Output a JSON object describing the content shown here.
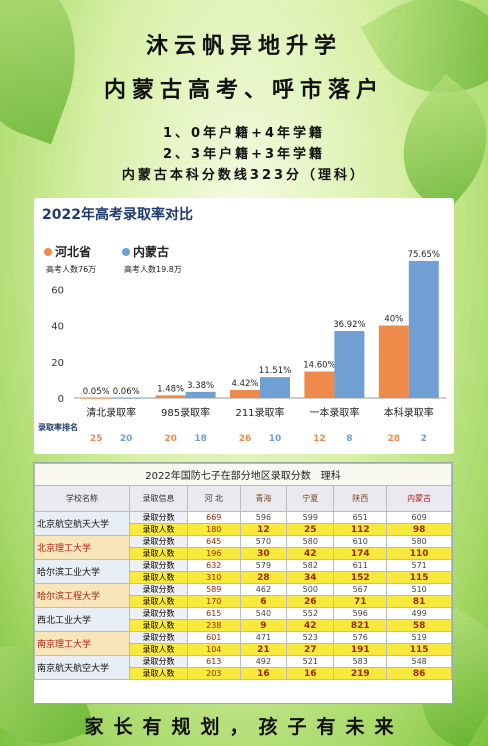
{
  "header": {
    "line1": "沐云帆异地升学",
    "line2": "内蒙古高考、呼市落户",
    "conditions": [
      "1、0年户籍+4年学籍",
      "2、3年户籍+3年学籍",
      "内蒙古本科分数线323分（理科）"
    ]
  },
  "chart_data": {
    "type": "bar",
    "title": "2022年高考录取率对比",
    "categories": [
      "清北录取率",
      "985录取率",
      "211录取率",
      "一本录取率",
      "本科录取率"
    ],
    "series": [
      {
        "name": "河北省",
        "values": [
          0.05,
          1.48,
          4.42,
          14.6,
          40
        ],
        "labels": [
          "0.05%",
          "1.48%",
          "4.42%",
          "14.60%",
          "40%"
        ],
        "ranks": [
          "25",
          "20",
          "26",
          "12",
          "28"
        ],
        "color": "#ee8a4a"
      },
      {
        "name": "内蒙古",
        "values": [
          0.06,
          3.38,
          11.51,
          36.92,
          75.65
        ],
        "labels": [
          "0.06%",
          "3.38%",
          "11.51%",
          "36.92%",
          "75.65%"
        ],
        "ranks": [
          "20",
          "18",
          "10",
          "8",
          "2"
        ],
        "color": "#6f9fd3"
      }
    ],
    "legend_notes": [
      "高考人数76万",
      "高考人数19.8万"
    ],
    "yticks": [
      "0",
      "20",
      "40",
      "60"
    ],
    "ylim": [
      0,
      80
    ],
    "rank_label": "录取率排名",
    "grid": false
  },
  "table": {
    "caption": "2022年国防七子在部分地区录取分数　理科",
    "headers": [
      "学校名称",
      "录取信息",
      "河 北",
      "青海",
      "宁夏",
      "陕西",
      "内蒙古"
    ],
    "score_label": "录取分数",
    "count_label": "录取人数",
    "schools": [
      {
        "name": "北京航空航天大学",
        "scores": [
          "669",
          "596",
          "599",
          "651",
          "609"
        ],
        "counts": [
          "180",
          "12",
          "25",
          "112",
          "98"
        ]
      },
      {
        "name": "北京理工大学",
        "scores": [
          "645",
          "570",
          "580",
          "610",
          "580"
        ],
        "counts": [
          "196",
          "30",
          "42",
          "174",
          "110"
        ]
      },
      {
        "name": "哈尔滨工业大学",
        "scores": [
          "632",
          "579",
          "582",
          "611",
          "571"
        ],
        "counts": [
          "310",
          "28",
          "34",
          "152",
          "115"
        ]
      },
      {
        "name": "哈尔滨工程大学",
        "scores": [
          "589",
          "462",
          "500",
          "567",
          "510"
        ],
        "counts": [
          "170",
          "6",
          "26",
          "71",
          "81"
        ]
      },
      {
        "name": "西北工业大学",
        "scores": [
          "615",
          "540",
          "552",
          "596",
          "499"
        ],
        "counts": [
          "238",
          "9",
          "42",
          "821",
          "58"
        ]
      },
      {
        "name": "南京理工大学",
        "scores": [
          "601",
          "471",
          "523",
          "576",
          "519"
        ],
        "counts": [
          "104",
          "21",
          "27",
          "191",
          "115"
        ]
      },
      {
        "name": "南京航天航空大学",
        "scores": [
          "613",
          "492",
          "521",
          "583",
          "548"
        ],
        "counts": [
          "203",
          "16",
          "16",
          "219",
          "86"
        ]
      }
    ]
  },
  "footer": "家长有规划，孩子有未来"
}
